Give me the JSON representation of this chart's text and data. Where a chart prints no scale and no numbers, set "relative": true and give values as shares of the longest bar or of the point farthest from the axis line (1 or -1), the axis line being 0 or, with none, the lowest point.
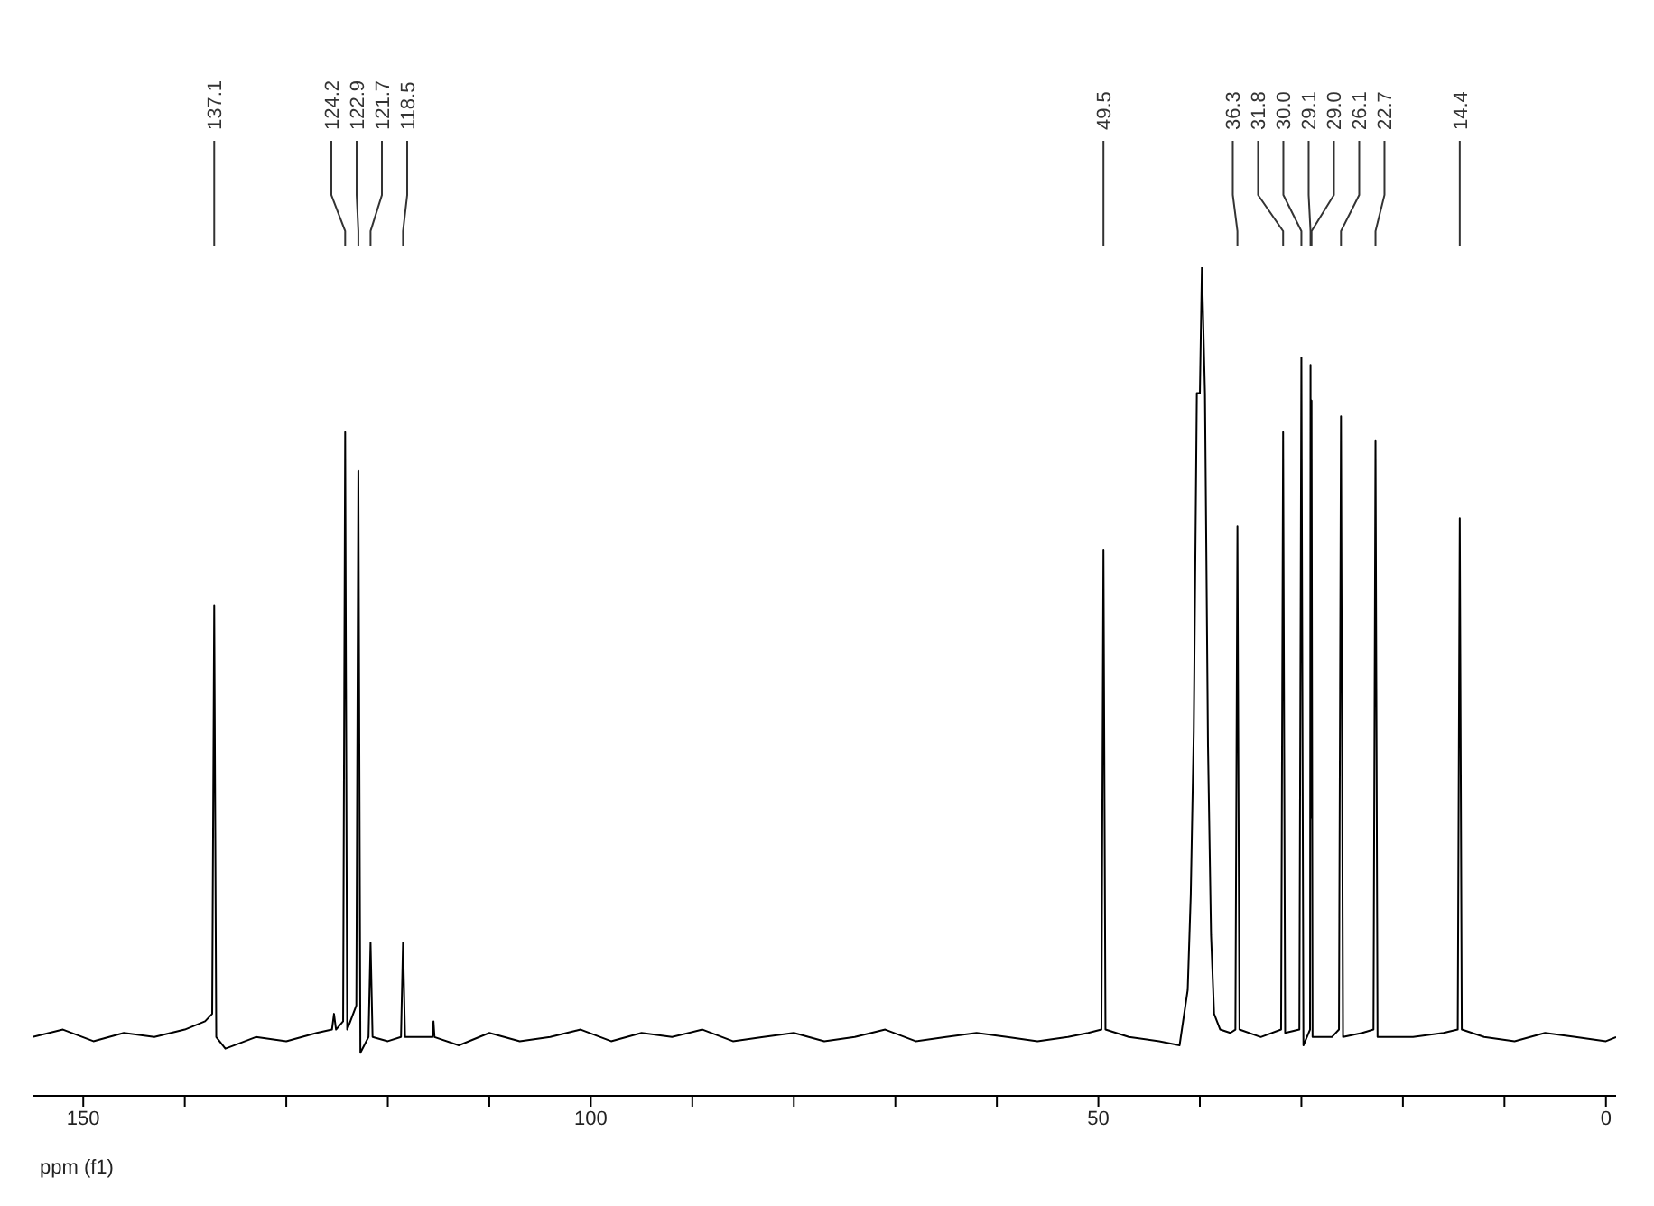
{
  "chart_data": {
    "type": "line",
    "xlabel": "ppm (f1)",
    "relative": true,
    "tick_labels": "x",
    "xlim": [
      155,
      -1
    ],
    "xticks": [
      150,
      {
        "value": 140,
        "label": null
      },
      {
        "value": 130,
        "label": null
      },
      {
        "value": 120,
        "label": null
      },
      {
        "value": 110,
        "label": null
      },
      100,
      {
        "value": 90,
        "label": null
      },
      {
        "value": 80,
        "label": null
      },
      {
        "value": 70,
        "label": null
      },
      {
        "value": 60,
        "label": null
      },
      50,
      {
        "value": 40,
        "label": null
      },
      {
        "value": 30,
        "label": null
      },
      {
        "value": 20,
        "label": null
      },
      {
        "value": 10,
        "label": null
      },
      0
    ],
    "series": [
      {
        "color": "#000000",
        "x": [
          155,
          152,
          149,
          146,
          143,
          140,
          138,
          137.3,
          137.1,
          136.9,
          136,
          133,
          130,
          127,
          125.5,
          125.3,
          125.1,
          124.4,
          124.2,
          124.0,
          123.1,
          122.9,
          122.7,
          121.9,
          121.7,
          121.5,
          120,
          118.7,
          118.5,
          118.3,
          116.5,
          115.6,
          115.5,
          115.4,
          113,
          110,
          107,
          104,
          101,
          98,
          95,
          92,
          89,
          86,
          83,
          80,
          77,
          74,
          71,
          68,
          65,
          62,
          59,
          56,
          53,
          51,
          49.7,
          49.5,
          49.3,
          47,
          44,
          42,
          41.2,
          40.9,
          40.6,
          40.3,
          40.0,
          39.8,
          39.5,
          39.2,
          38.9,
          38.6,
          38,
          37,
          36.5,
          36.3,
          36.1,
          34,
          32,
          31.8,
          31.6,
          30.2,
          30.0,
          29.8,
          29.15,
          29.1,
          29.05,
          29.0,
          28.9,
          27,
          26.3,
          26.1,
          25.9,
          24,
          22.9,
          22.7,
          22.5,
          19,
          16,
          14.6,
          14.4,
          14.2,
          12,
          9,
          6,
          3,
          0,
          -1
        ],
        "values": [
          0.071,
          0.08,
          0.066,
          0.076,
          0.071,
          0.08,
          0.09,
          0.099,
          0.592,
          0.071,
          0.057,
          0.071,
          0.066,
          0.076,
          0.08,
          0.099,
          0.08,
          0.09,
          0.801,
          0.08,
          0.109,
          0.754,
          0.052,
          0.071,
          0.185,
          0.071,
          0.066,
          0.071,
          0.185,
          0.071,
          0.071,
          0.071,
          0.09,
          0.071,
          0.061,
          0.076,
          0.066,
          0.071,
          0.08,
          0.066,
          0.076,
          0.071,
          0.08,
          0.066,
          0.071,
          0.076,
          0.066,
          0.071,
          0.08,
          0.066,
          0.071,
          0.076,
          0.071,
          0.066,
          0.071,
          0.076,
          0.08,
          0.659,
          0.08,
          0.071,
          0.066,
          0.061,
          0.128,
          0.242,
          0.441,
          0.848,
          0.848,
          1.0,
          0.848,
          0.422,
          0.194,
          0.099,
          0.08,
          0.076,
          0.08,
          0.687,
          0.08,
          0.071,
          0.08,
          0.801,
          0.076,
          0.08,
          0.891,
          0.061,
          0.08,
          0.882,
          0.336,
          0.839,
          0.071,
          0.071,
          0.08,
          0.82,
          0.071,
          0.076,
          0.08,
          0.791,
          0.071,
          0.071,
          0.076,
          0.08,
          0.697,
          0.08,
          0.071,
          0.066,
          0.076,
          0.071,
          0.066,
          0.071
        ]
      }
    ],
    "annotations": [
      {
        "text": "137.1",
        "x": 137.1
      },
      {
        "text": "124.2",
        "x": 124.2
      },
      {
        "text": "122.9",
        "x": 122.9
      },
      {
        "text": "121.7",
        "x": 121.7
      },
      {
        "text": "118.5",
        "x": 118.5
      },
      {
        "text": "49.5",
        "x": 49.5
      },
      {
        "text": "36.3",
        "x": 36.3
      },
      {
        "text": "31.8",
        "x": 31.8
      },
      {
        "text": "30.0",
        "x": 30.0
      },
      {
        "text": "29.1",
        "x": 29.1
      },
      {
        "text": "29.0",
        "x": 29.0
      },
      {
        "text": "26.1",
        "x": 26.1
      },
      {
        "text": "22.7",
        "x": 22.7
      },
      {
        "text": "14.4",
        "x": 14.4
      }
    ]
  }
}
